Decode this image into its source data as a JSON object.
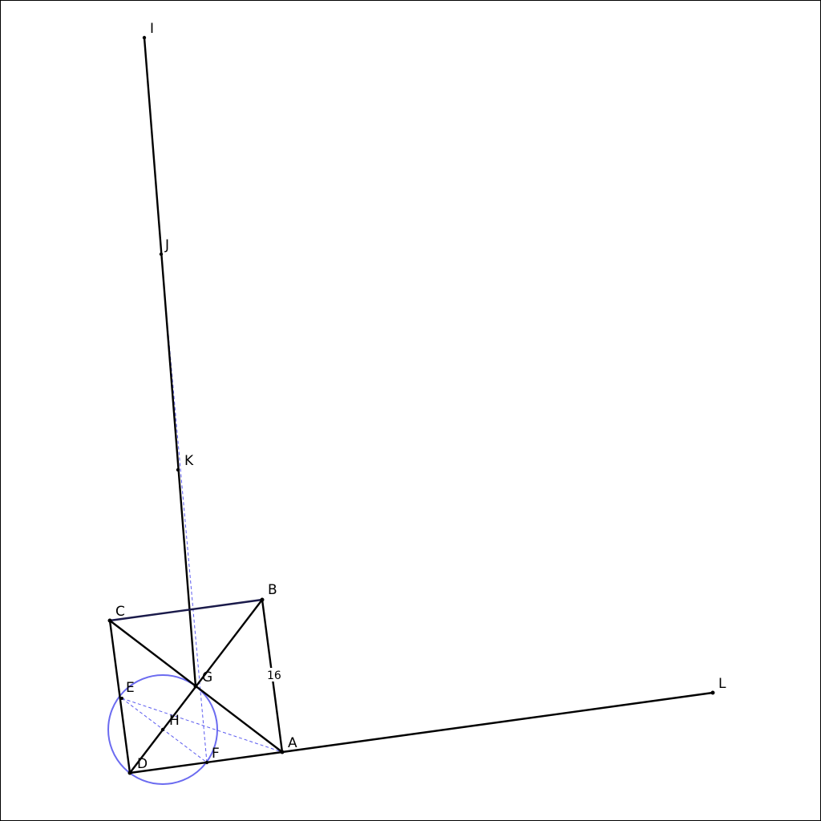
{
  "points": {
    "A": "A",
    "B": "B",
    "C": "C",
    "D": "D",
    "E": "E",
    "F": "F",
    "G": "G",
    "H": "H",
    "I": "I",
    "J": "J",
    "K": "K",
    "L": "L"
  },
  "measurements": {
    "AB_length": "16"
  },
  "colors": {
    "segment": "#000000",
    "segment_CB": "#1a1a4a",
    "circle": "#6b6bf0",
    "construction_dashed": "#5b5bef"
  }
}
